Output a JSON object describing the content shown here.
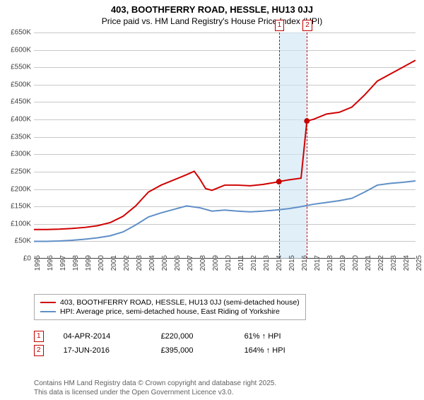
{
  "title": "403, BOOTHFERRY ROAD, HESSLE, HU13 0JJ",
  "subtitle": "Price paid vs. HM Land Registry's House Price Index (HPI)",
  "chart": {
    "type": "line",
    "background_color": "#ffffff",
    "grid_color": "#c8c8c8",
    "axis_color": "#404040",
    "label_fontsize": 10,
    "x": {
      "min": 1995,
      "max": 2025,
      "ticks": [
        1995,
        1996,
        1997,
        1998,
        1999,
        2000,
        2001,
        2002,
        2003,
        2004,
        2005,
        2006,
        2007,
        2008,
        2009,
        2010,
        2011,
        2012,
        2013,
        2014,
        2015,
        2016,
        2017,
        2018,
        2019,
        2020,
        2021,
        2022,
        2023,
        2024,
        2025
      ]
    },
    "y": {
      "min": 0,
      "max": 650000,
      "ticks": [
        0,
        50000,
        100000,
        150000,
        200000,
        250000,
        300000,
        350000,
        400000,
        450000,
        500000,
        550000,
        600000,
        650000
      ],
      "labels": [
        "£0",
        "£50K",
        "£100K",
        "£150K",
        "£200K",
        "£250K",
        "£300K",
        "£350K",
        "£400K",
        "£450K",
        "£500K",
        "£550K",
        "£600K",
        "£650K"
      ]
    },
    "series": [
      {
        "name": "403, BOOTHFERRY ROAD, HESSLE, HU13 0JJ (semi-detached house)",
        "color": "#d00000",
        "line_width": 2,
        "points": [
          [
            1995,
            82000
          ],
          [
            1996,
            82000
          ],
          [
            1997,
            83000
          ],
          [
            1998,
            85000
          ],
          [
            1999,
            88000
          ],
          [
            2000,
            93000
          ],
          [
            2001,
            102000
          ],
          [
            2002,
            120000
          ],
          [
            2003,
            150000
          ],
          [
            2004,
            190000
          ],
          [
            2005,
            210000
          ],
          [
            2006,
            225000
          ],
          [
            2007,
            240000
          ],
          [
            2007.6,
            250000
          ],
          [
            2008,
            230000
          ],
          [
            2008.5,
            200000
          ],
          [
            2009,
            195000
          ],
          [
            2010,
            210000
          ],
          [
            2011,
            210000
          ],
          [
            2012,
            208000
          ],
          [
            2013,
            212000
          ],
          [
            2014,
            218000
          ],
          [
            2014.26,
            220000
          ],
          [
            2015,
            225000
          ],
          [
            2016,
            230000
          ],
          [
            2016.46,
            395000
          ],
          [
            2017,
            400000
          ],
          [
            2018,
            415000
          ],
          [
            2019,
            420000
          ],
          [
            2020,
            435000
          ],
          [
            2021,
            470000
          ],
          [
            2022,
            510000
          ],
          [
            2023,
            530000
          ],
          [
            2024,
            550000
          ],
          [
            2025,
            570000
          ]
        ]
      },
      {
        "name": "HPI: Average price, semi-detached house, East Riding of Yorkshire",
        "color": "#5f8fc7",
        "line_width": 2,
        "points": [
          [
            1995,
            48000
          ],
          [
            1996,
            48000
          ],
          [
            1997,
            49000
          ],
          [
            1998,
            51000
          ],
          [
            1999,
            54000
          ],
          [
            2000,
            58000
          ],
          [
            2001,
            64000
          ],
          [
            2002,
            75000
          ],
          [
            2003,
            95000
          ],
          [
            2004,
            118000
          ],
          [
            2005,
            130000
          ],
          [
            2006,
            140000
          ],
          [
            2007,
            150000
          ],
          [
            2008,
            145000
          ],
          [
            2009,
            135000
          ],
          [
            2010,
            138000
          ],
          [
            2011,
            135000
          ],
          [
            2012,
            133000
          ],
          [
            2013,
            135000
          ],
          [
            2014,
            138000
          ],
          [
            2015,
            142000
          ],
          [
            2016,
            148000
          ],
          [
            2017,
            155000
          ],
          [
            2018,
            160000
          ],
          [
            2019,
            165000
          ],
          [
            2020,
            172000
          ],
          [
            2021,
            190000
          ],
          [
            2022,
            210000
          ],
          [
            2023,
            215000
          ],
          [
            2024,
            218000
          ],
          [
            2025,
            222000
          ]
        ]
      }
    ],
    "sale_markers": [
      {
        "id": "1",
        "x": 2014.26,
        "y": 220000
      },
      {
        "id": "2",
        "x": 2016.46,
        "y": 395000
      }
    ],
    "marker_color": "#c00000",
    "band_color": "#cde4f5"
  },
  "legend": {
    "items": [
      {
        "color": "#d00000",
        "label": "403, BOOTHFERRY ROAD, HESSLE, HU13 0JJ (semi-detached house)"
      },
      {
        "color": "#5f8fc7",
        "label": "HPI: Average price, semi-detached house, East Riding of Yorkshire"
      }
    ]
  },
  "rows": [
    {
      "marker": "1",
      "date": "04-APR-2014",
      "price": "£220,000",
      "pct": "61% ↑ HPI"
    },
    {
      "marker": "2",
      "date": "17-JUN-2016",
      "price": "£395,000",
      "pct": "164% ↑ HPI"
    }
  ],
  "footnote1": "Contains HM Land Registry data © Crown copyright and database right 2025.",
  "footnote2": "This data is licensed under the Open Government Licence v3.0."
}
